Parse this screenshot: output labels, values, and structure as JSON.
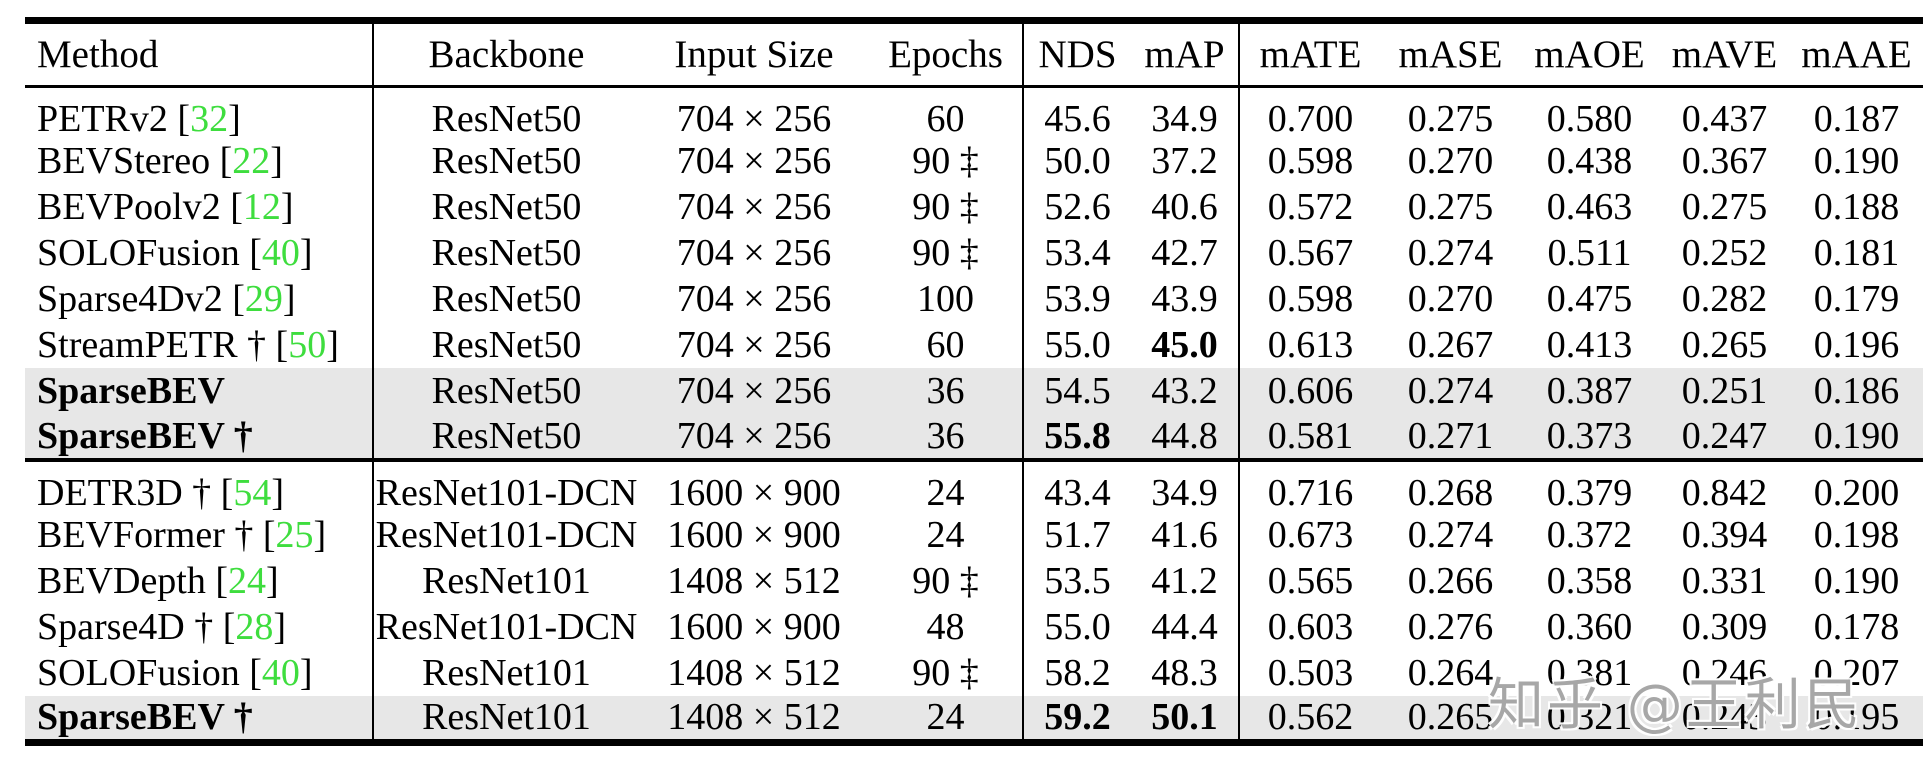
{
  "figure": {
    "type": "paper-results-table",
    "dataset": "nuScenes detection metrics table"
  },
  "columns": [
    {
      "key": "method",
      "label": "Method"
    },
    {
      "key": "backbone",
      "label": "Backbone"
    },
    {
      "key": "input_size",
      "label": "Input Size"
    },
    {
      "key": "epochs",
      "label": "Epochs"
    },
    {
      "key": "nds",
      "label": "NDS"
    },
    {
      "key": "map",
      "label": "mAP"
    },
    {
      "key": "mate",
      "label": "mATE"
    },
    {
      "key": "mase",
      "label": "mASE"
    },
    {
      "key": "maoe",
      "label": "mAOE"
    },
    {
      "key": "mave",
      "label": "mAVE"
    },
    {
      "key": "maae",
      "label": "mAAE"
    }
  ],
  "sections": [
    {
      "rows": [
        {
          "method": "PETRv2",
          "cite": "32",
          "method_bold": false,
          "highlight": false,
          "bold": [],
          "cells": {
            "backbone": "ResNet50",
            "input_size": "704 × 256",
            "epochs": "60",
            "nds": "45.6",
            "map": "34.9",
            "mate": "0.700",
            "mase": "0.275",
            "maoe": "0.580",
            "mave": "0.437",
            "maae": "0.187"
          }
        },
        {
          "method": "BEVStereo",
          "cite": "22",
          "method_bold": false,
          "highlight": false,
          "bold": [],
          "cells": {
            "backbone": "ResNet50",
            "input_size": "704 × 256",
            "epochs": "90 ‡",
            "nds": "50.0",
            "map": "37.2",
            "mate": "0.598",
            "mase": "0.270",
            "maoe": "0.438",
            "mave": "0.367",
            "maae": "0.190"
          }
        },
        {
          "method": "BEVPoolv2",
          "cite": "12",
          "method_bold": false,
          "highlight": false,
          "bold": [],
          "cells": {
            "backbone": "ResNet50",
            "input_size": "704 × 256",
            "epochs": "90 ‡",
            "nds": "52.6",
            "map": "40.6",
            "mate": "0.572",
            "mase": "0.275",
            "maoe": "0.463",
            "mave": "0.275",
            "maae": "0.188"
          }
        },
        {
          "method": "SOLOFusion",
          "cite": "40",
          "method_bold": false,
          "highlight": false,
          "bold": [],
          "cells": {
            "backbone": "ResNet50",
            "input_size": "704 × 256",
            "epochs": "90 ‡",
            "nds": "53.4",
            "map": "42.7",
            "mate": "0.567",
            "mase": "0.274",
            "maoe": "0.511",
            "mave": "0.252",
            "maae": "0.181"
          }
        },
        {
          "method": "Sparse4Dv2",
          "cite": "29",
          "method_bold": false,
          "highlight": false,
          "bold": [],
          "cells": {
            "backbone": "ResNet50",
            "input_size": "704 × 256",
            "epochs": "100",
            "nds": "53.9",
            "map": "43.9",
            "mate": "0.598",
            "mase": "0.270",
            "maoe": "0.475",
            "mave": "0.282",
            "maae": "0.179"
          }
        },
        {
          "method": "StreamPETR †",
          "cite": "50",
          "method_bold": false,
          "highlight": false,
          "bold": [
            "map"
          ],
          "cells": {
            "backbone": "ResNet50",
            "input_size": "704 × 256",
            "epochs": "60",
            "nds": "55.0",
            "map": "45.0",
            "mate": "0.613",
            "mase": "0.267",
            "maoe": "0.413",
            "mave": "0.265",
            "maae": "0.196"
          }
        },
        {
          "method": "SparseBEV",
          "cite": null,
          "method_bold": true,
          "highlight": true,
          "bold": [],
          "cells": {
            "backbone": "ResNet50",
            "input_size": "704 × 256",
            "epochs": "36",
            "nds": "54.5",
            "map": "43.2",
            "mate": "0.606",
            "mase": "0.274",
            "maoe": "0.387",
            "mave": "0.251",
            "maae": "0.186"
          }
        },
        {
          "method": "SparseBEV †",
          "cite": null,
          "method_bold": true,
          "highlight": true,
          "bold": [
            "nds"
          ],
          "cells": {
            "backbone": "ResNet50",
            "input_size": "704 × 256",
            "epochs": "36",
            "nds": "55.8",
            "map": "44.8",
            "mate": "0.581",
            "mase": "0.271",
            "maoe": "0.373",
            "mave": "0.247",
            "maae": "0.190"
          }
        }
      ]
    },
    {
      "rows": [
        {
          "method": "DETR3D †",
          "cite": "54",
          "method_bold": false,
          "highlight": false,
          "bold": [],
          "cells": {
            "backbone": "ResNet101-DCN",
            "input_size": "1600 × 900",
            "epochs": "24",
            "nds": "43.4",
            "map": "34.9",
            "mate": "0.716",
            "mase": "0.268",
            "maoe": "0.379",
            "mave": "0.842",
            "maae": "0.200"
          }
        },
        {
          "method": "BEVFormer †",
          "cite": "25",
          "method_bold": false,
          "highlight": false,
          "bold": [],
          "cells": {
            "backbone": "ResNet101-DCN",
            "input_size": "1600 × 900",
            "epochs": "24",
            "nds": "51.7",
            "map": "41.6",
            "mate": "0.673",
            "mase": "0.274",
            "maoe": "0.372",
            "mave": "0.394",
            "maae": "0.198"
          }
        },
        {
          "method": "BEVDepth",
          "cite": "24",
          "method_bold": false,
          "highlight": false,
          "bold": [],
          "cells": {
            "backbone": "ResNet101",
            "input_size": "1408 × 512",
            "epochs": "90 ‡",
            "nds": "53.5",
            "map": "41.2",
            "mate": "0.565",
            "mase": "0.266",
            "maoe": "0.358",
            "mave": "0.331",
            "maae": "0.190"
          }
        },
        {
          "method": "Sparse4D †",
          "cite": "28",
          "method_bold": false,
          "highlight": false,
          "bold": [],
          "cells": {
            "backbone": "ResNet101-DCN",
            "input_size": "1600 × 900",
            "epochs": "48",
            "nds": "55.0",
            "map": "44.4",
            "mate": "0.603",
            "mase": "0.276",
            "maoe": "0.360",
            "mave": "0.309",
            "maae": "0.178"
          }
        },
        {
          "method": "SOLOFusion",
          "cite": "40",
          "method_bold": false,
          "highlight": false,
          "bold": [],
          "cells": {
            "backbone": "ResNet101",
            "input_size": "1408 × 512",
            "epochs": "90 ‡",
            "nds": "58.2",
            "map": "48.3",
            "mate": "0.503",
            "mase": "0.264",
            "maoe": "0.381",
            "mave": "0.246",
            "maae": "0.207"
          }
        },
        {
          "method": "SparseBEV †",
          "cite": null,
          "method_bold": true,
          "highlight": true,
          "bold": [
            "nds",
            "map"
          ],
          "cells": {
            "backbone": "ResNet101",
            "input_size": "1408 × 512",
            "epochs": "24",
            "nds": "59.2",
            "map": "50.1",
            "mate": "0.562",
            "mase": "0.265",
            "maoe": "0.321",
            "mave": "0.243",
            "maae": "0.195"
          }
        }
      ]
    }
  ],
  "watermark": {
    "text": "知乎 @王利民"
  },
  "colors": {
    "citation_green": "#3edd3e",
    "highlight_row": "#e7e7e7",
    "rule_black": "#000000",
    "background": "#ffffff"
  }
}
